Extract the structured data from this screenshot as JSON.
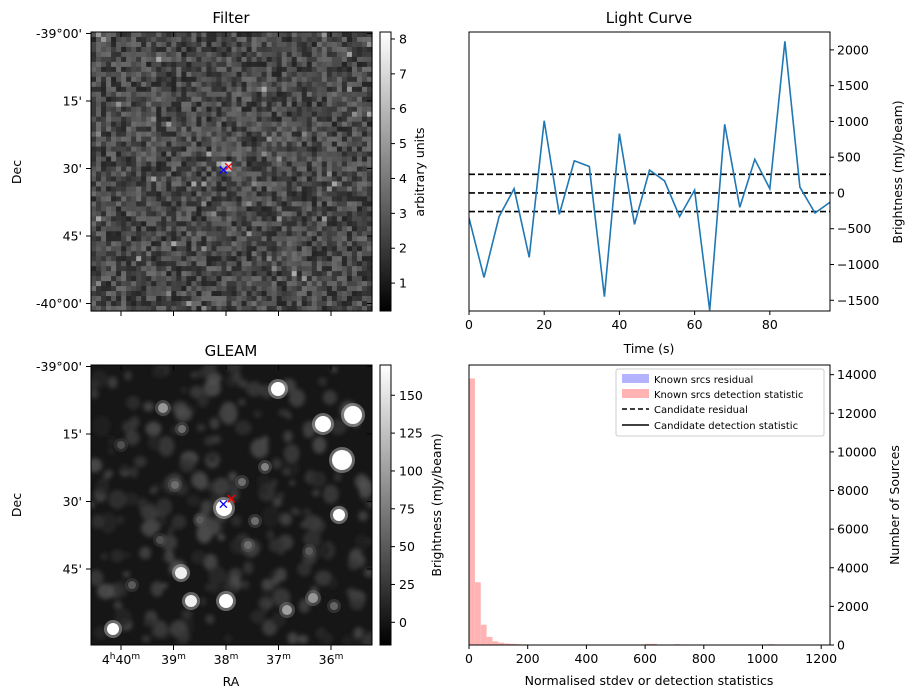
{
  "panels": {
    "filter": {
      "title": "Filter",
      "ylabel": "Dec",
      "colorbar_label": "arbitrary units",
      "yticks": [
        "-39°00'",
        "15'",
        "30'",
        "45'",
        "-40°00'"
      ],
      "cbar_ticks": [
        "1",
        "2",
        "3",
        "4",
        "5",
        "6",
        "7",
        "8"
      ]
    },
    "gleam": {
      "title": "GLEAM",
      "ylabel": "Dec",
      "xlabel": "RA",
      "colorbar_label": "Brightness (mJy/beam)",
      "yticks": [
        "-39°00'",
        "15'",
        "30'",
        "45'"
      ],
      "xticks": [
        {
          "main": "4",
          "sup1": "h",
          "min": "40",
          "sup2": "m"
        },
        {
          "main": "",
          "sup1": "",
          "min": "39",
          "sup2": "m"
        },
        {
          "main": "",
          "sup1": "",
          "min": "38",
          "sup2": "m"
        },
        {
          "main": "",
          "sup1": "",
          "min": "37",
          "sup2": "m"
        },
        {
          "main": "",
          "sup1": "",
          "min": "36",
          "sup2": "m"
        }
      ],
      "cbar_ticks": [
        "0",
        "25",
        "50",
        "75",
        "100",
        "125",
        "150"
      ]
    },
    "light_curve": {
      "title": "Light Curve",
      "xlabel": "Time (s)",
      "ylabel": "Brightness (mJy/beam)",
      "xticks": [
        "0",
        "20",
        "40",
        "60",
        "80"
      ],
      "yticks": [
        "−1500",
        "−1000",
        "−500",
        "0",
        "500",
        "1000",
        "1500",
        "2000"
      ]
    },
    "histogram": {
      "xlabel": "Normalised stdev or detection statistics",
      "ylabel": "Number of Sources",
      "xticks": [
        "0",
        "200",
        "400",
        "600",
        "800",
        "1000",
        "1200"
      ],
      "yticks": [
        "0",
        "2000",
        "4000",
        "6000",
        "8000",
        "10000",
        "12000",
        "14000"
      ],
      "legend": [
        {
          "label": "Known srcs residual",
          "kind": "patch",
          "color": "#b3b3ff"
        },
        {
          "label": "Known srcs detection statistic",
          "kind": "patch",
          "color": "#ffb3b3"
        },
        {
          "label": "Candidate residual",
          "kind": "dashed",
          "color": "#000000"
        },
        {
          "label": "Candidate detection statistic",
          "kind": "solid",
          "color": "#000000"
        }
      ]
    }
  },
  "chart_data": [
    {
      "type": "heatmap",
      "title": "Filter",
      "ylabel": "Dec",
      "colorbar_label": "arbitrary units",
      "colorbar_range": [
        0.2,
        8.2
      ],
      "colormap": "gray",
      "ytick_labels": [
        "-39°00'",
        "15'",
        "30'",
        "45'",
        "-40°00'"
      ],
      "markers": [
        {
          "symbol": "x",
          "color": "#ff0000",
          "ra_min": 37.95,
          "dec_arcmin": 29.6
        },
        {
          "symbol": "x",
          "color": "#0000ff",
          "ra_min": 38.05,
          "dec_arcmin": 30.3
        }
      ]
    },
    {
      "type": "line",
      "title": "Light Curve",
      "xlabel": "Time (s)",
      "ylabel": "Brightness (mJy/beam)",
      "xlim": [
        0,
        96
      ],
      "ylim": [
        -1650,
        2250
      ],
      "color": "#1f77b4",
      "x": [
        0,
        4,
        8,
        12,
        16,
        20,
        24,
        28,
        32,
        36,
        40,
        44,
        48,
        52,
        56,
        60,
        64,
        68,
        72,
        76,
        80,
        84,
        88,
        92,
        96
      ],
      "y": [
        -350,
        -1180,
        -330,
        60,
        -900,
        1010,
        -300,
        450,
        370,
        -1450,
        830,
        -440,
        320,
        170,
        -330,
        40,
        -1640,
        960,
        -200,
        470,
        60,
        2120,
        80,
        -280,
        -130
      ],
      "hlines": [
        {
          "y": 0,
          "style": "dashed",
          "color": "#000000"
        },
        {
          "y": 260,
          "style": "dashed",
          "color": "#000000"
        },
        {
          "y": -260,
          "style": "dashed",
          "color": "#000000"
        }
      ]
    },
    {
      "type": "heatmap",
      "title": "GLEAM",
      "xlabel": "RA",
      "ylabel": "Dec",
      "colorbar_label": "Brightness (mJy/beam)",
      "colorbar_range": [
        -15,
        170
      ],
      "colormap": "gray",
      "xtick_labels": [
        "4h40m",
        "39m",
        "38m",
        "37m",
        "36m"
      ],
      "ytick_labels": [
        "-39°00'",
        "15'",
        "30'",
        "45'"
      ],
      "markers": [
        {
          "symbol": "x",
          "color": "#ff0000",
          "ra_min": 37.9,
          "dec_arcmin": 29.4
        },
        {
          "symbol": "x",
          "color": "#0000ff",
          "ra_min": 38.05,
          "dec_arcmin": 30.6
        }
      ]
    },
    {
      "type": "bar",
      "xlabel": "Normalised stdev or detection statistics",
      "ylabel": "Number of Sources",
      "xlim": [
        0,
        1230
      ],
      "ylim": [
        0,
        14500
      ],
      "series": [
        {
          "name": "Known srcs detection statistic",
          "color": "#ffb3b3",
          "bin_width": 20,
          "bin_starts": [
            0,
            20,
            40,
            60,
            80,
            100,
            120,
            140,
            160,
            180,
            200,
            220,
            240,
            260,
            280,
            300,
            320,
            340,
            360,
            380,
            400,
            420,
            440,
            460,
            480,
            500,
            520,
            540,
            560,
            580,
            600,
            620,
            640,
            660,
            680,
            700,
            720,
            740,
            760,
            780,
            800,
            820,
            840,
            860,
            880,
            900,
            920,
            940,
            960,
            980,
            1000,
            1020,
            1040,
            1060,
            1080,
            1100,
            1120,
            1140,
            1160,
            1180,
            1200
          ],
          "counts": [
            13800,
            3250,
            1050,
            420,
            190,
            120,
            80,
            60,
            40,
            30,
            25,
            20,
            15,
            15,
            12,
            10,
            10,
            8,
            8,
            6,
            6,
            5,
            5,
            4,
            4,
            4,
            4,
            3,
            3,
            3,
            60,
            60,
            3,
            3,
            3,
            40,
            3,
            3,
            3,
            3,
            3,
            3,
            3,
            3,
            3,
            3,
            3,
            3,
            3,
            3,
            3,
            40,
            3,
            3,
            3,
            3,
            3,
            3,
            3,
            3,
            3
          ]
        }
      ],
      "legend": [
        "Known srcs residual",
        "Known srcs detection statistic",
        "Candidate residual",
        "Candidate detection statistic"
      ]
    }
  ]
}
